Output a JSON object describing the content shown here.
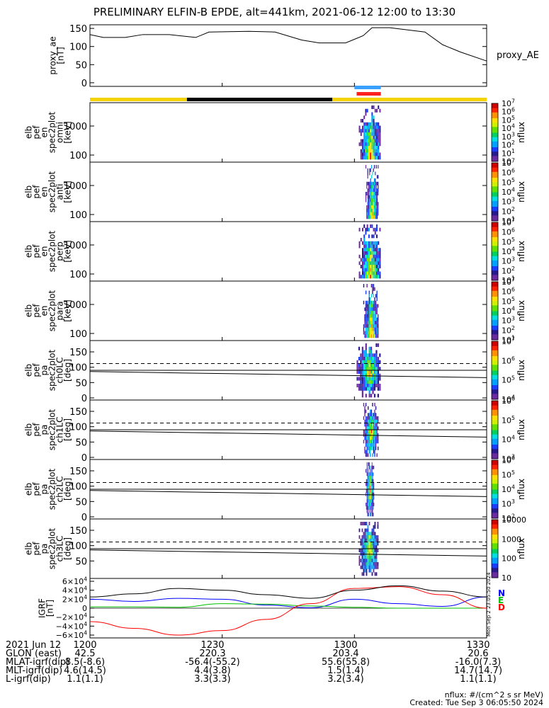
{
  "title": "PRELIMINARY ELFIN-B EPDE, alt=441km, 2021-06-12 12:00 to 13:30",
  "chart_data": [
    {
      "type": "line",
      "ylabel": [
        "proxy_ae",
        "[nT]"
      ],
      "legend": "proxy_AE",
      "ylim": [
        -10,
        160
      ],
      "yticks": [
        0,
        50,
        100,
        150
      ],
      "x_minutes": [
        0,
        3,
        8,
        12,
        18,
        24,
        27,
        36,
        42,
        48,
        52,
        58,
        62,
        64,
        68,
        76,
        80,
        84,
        90
      ],
      "values": [
        133,
        125,
        125,
        133,
        133,
        125,
        140,
        142,
        140,
        118,
        110,
        110,
        130,
        152,
        152,
        140,
        105,
        85,
        60
      ]
    },
    {
      "type": "heatmap",
      "ylabel": [
        "elb",
        "pef",
        "en",
        "spec2plot",
        "omni",
        "[keV]"
      ],
      "yticks": [
        "100",
        "1000"
      ],
      "colorbar": [
        "10",
        "10^1",
        "10^2",
        "10^3",
        "10^4",
        "10^5",
        "10^6",
        "10^7"
      ],
      "colorbar_label": "nflux"
    },
    {
      "type": "heatmap",
      "ylabel": [
        "elb",
        "pef",
        "en",
        "spec2plot",
        "anti",
        "[keV]"
      ],
      "yticks": [
        "100",
        "1000"
      ],
      "colorbar": [
        "10^1",
        "10^2",
        "10^3",
        "10^4",
        "10^5",
        "10^6",
        "10^7"
      ],
      "colorbar_label": "nflux"
    },
    {
      "type": "heatmap",
      "ylabel": [
        "elb",
        "pef",
        "en",
        "spec2plot",
        "perp",
        "[keV]"
      ],
      "yticks": [
        "100",
        "1000"
      ],
      "colorbar": [
        "10^1",
        "10^2",
        "10^3",
        "10^4",
        "10^5",
        "10^6",
        "10^7"
      ],
      "colorbar_label": "nflux"
    },
    {
      "type": "heatmap",
      "ylabel": [
        "elb",
        "pef",
        "en",
        "spec2plot",
        "para",
        "[keV]"
      ],
      "yticks": [
        "100",
        "1000"
      ],
      "colorbar": [
        "10^1",
        "10^2",
        "10^3",
        "10^4",
        "10^5",
        "10^6",
        "10^7"
      ],
      "colorbar_label": "nflux"
    },
    {
      "type": "heatmap",
      "ylabel": [
        "elb",
        "pef",
        "pa",
        "spec2plot",
        "ch0LC",
        "[deg]"
      ],
      "yticks": [
        "0",
        "50",
        "100",
        "150"
      ],
      "colorbar": [
        "10^4",
        "10^5",
        "10^6",
        "10^7"
      ],
      "colorbar_label": "nflux"
    },
    {
      "type": "heatmap",
      "ylabel": [
        "elb",
        "pef",
        "pa",
        "spec2plot",
        "ch1LC",
        "[deg]"
      ],
      "yticks": [
        "0",
        "50",
        "100",
        "150"
      ],
      "colorbar": [
        "10^3",
        "10^4",
        "10^5",
        "10^6"
      ],
      "colorbar_label": "nflux"
    },
    {
      "type": "heatmap",
      "ylabel": [
        "elb",
        "pef",
        "pa",
        "spec2plot",
        "ch2LC",
        "[deg]"
      ],
      "yticks": [
        "0",
        "50",
        "100",
        "150"
      ],
      "colorbar": [
        "10^2",
        "10^3",
        "10^4",
        "10^5",
        "10^6"
      ],
      "colorbar_label": "nflux"
    },
    {
      "type": "heatmap",
      "ylabel": [
        "elb",
        "pef",
        "pa",
        "spec2plot",
        "ch3LC",
        "[deg]"
      ],
      "yticks": [
        "50",
        "100",
        "150"
      ],
      "colorbar": [
        "10",
        "100",
        "1000",
        "10000"
      ],
      "colorbar_label": "nflux"
    },
    {
      "type": "line",
      "ylabel": [
        "IGRF",
        "[nT]"
      ],
      "yticks": [
        "6×10^4",
        "4×10^4",
        "2×10^4",
        "0",
        "−2×10^4",
        "−4×10^4",
        "−6×10^4"
      ],
      "legend": [
        "N",
        "E",
        "D"
      ],
      "x_minutes": [
        0,
        10,
        20,
        30,
        40,
        50,
        60,
        70,
        80,
        90
      ],
      "series": [
        {
          "name": "N",
          "values": [
            20000,
            15000,
            22000,
            20000,
            7000,
            1000,
            20000,
            10000,
            4000,
            25000
          ]
        },
        {
          "name": "E",
          "values": [
            3000,
            3000,
            2000,
            10000,
            9000,
            5000,
            2000,
            0,
            0,
            0
          ]
        },
        {
          "name": "D",
          "values": [
            -30000,
            -45000,
            -60000,
            -50000,
            -25000,
            10000,
            44000,
            48000,
            30000,
            0
          ]
        },
        {
          "name": "",
          "values": [
            25000,
            32000,
            44000,
            40000,
            30000,
            22000,
            40000,
            50000,
            38000,
            25000
          ]
        }
      ],
      "side_text": "Mon Sep  2 23:05:50 2024"
    }
  ],
  "orbit_bar": {
    "segments": [
      {
        "from": 0,
        "to": 22,
        "color": "#f5d300"
      },
      {
        "from": 22,
        "to": 55,
        "color": "#000000"
      },
      {
        "from": 55,
        "to": 90,
        "color": "#f5d300"
      }
    ],
    "markers": [
      {
        "from": 60,
        "to": 66,
        "color": "#3aa0ff"
      },
      {
        "from": 60.5,
        "to": 66,
        "color": "#ff2020"
      }
    ]
  },
  "x_ticks": [
    "1200",
    "1230",
    "1300",
    "1330"
  ],
  "footer": {
    "rows": [
      {
        "label": "2021 Jun 12",
        "vals": [
          "1200",
          "1230",
          "1300",
          "1330"
        ]
      },
      {
        "label": "GLON (east)",
        "vals": [
          "42.5",
          "220.3",
          "203.4",
          "20.6"
        ]
      },
      {
        "label": "MLAT-igrf(dip)",
        "vals": [
          "8.5(-8.6)",
          "-56.4(-55.2)",
          "55.6(55.8)",
          "-16.0(7.3)"
        ]
      },
      {
        "label": "MLT-igrf(dip)",
        "vals": [
          "4.6(14.5)",
          "4.4(3.8)",
          "1.5(1.4)",
          "14.7(14.7)"
        ]
      },
      {
        "label": "L-igrf(dip)",
        "vals": [
          "1.1(1.1)",
          "3.3(3.3)",
          "3.2(3.4)",
          "1.1(1.1)"
        ]
      }
    ],
    "note1": "nflux: #/(cm^2 s sr MeV)",
    "note2": "Created: Tue Sep  3 06:05:50 2024"
  },
  "colors": {
    "proxy_line": "#000000",
    "igrf_N": "#0000ff",
    "igrf_E": "#00c000",
    "igrf_D": "#ff0000"
  }
}
